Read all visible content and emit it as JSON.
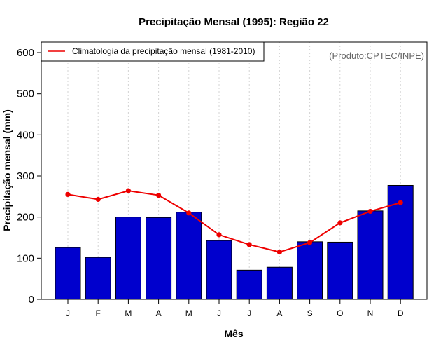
{
  "chart_data": {
    "type": "bar",
    "title": "Precipitação Mensal (1995): Região 22",
    "xlabel": "Mês",
    "ylabel": "Precipitação mensal (mm)",
    "ylim": [
      0,
      600
    ],
    "yticks": [
      0,
      100,
      200,
      300,
      400,
      500,
      600
    ],
    "grid": "vertical dotted",
    "legend_position": "top-left",
    "credit": "(Produto:CPTEC/INPE)",
    "categories": [
      "J",
      "F",
      "M",
      "A",
      "M",
      "J",
      "J",
      "A",
      "S",
      "O",
      "N",
      "D"
    ],
    "series": [
      {
        "name": "Precipitação mensal (1995)",
        "kind": "bar",
        "color": "#0000CD",
        "values": [
          126,
          102,
          200,
          199,
          212,
          143,
          71,
          78,
          140,
          139,
          215,
          277
        ]
      },
      {
        "name": "Climatologia da precipitação mensal (1981-2010)",
        "kind": "line",
        "color": "#EE0000",
        "values": [
          255,
          243,
          264,
          253,
          210,
          157,
          133,
          115,
          138,
          186,
          214,
          235
        ]
      }
    ]
  }
}
